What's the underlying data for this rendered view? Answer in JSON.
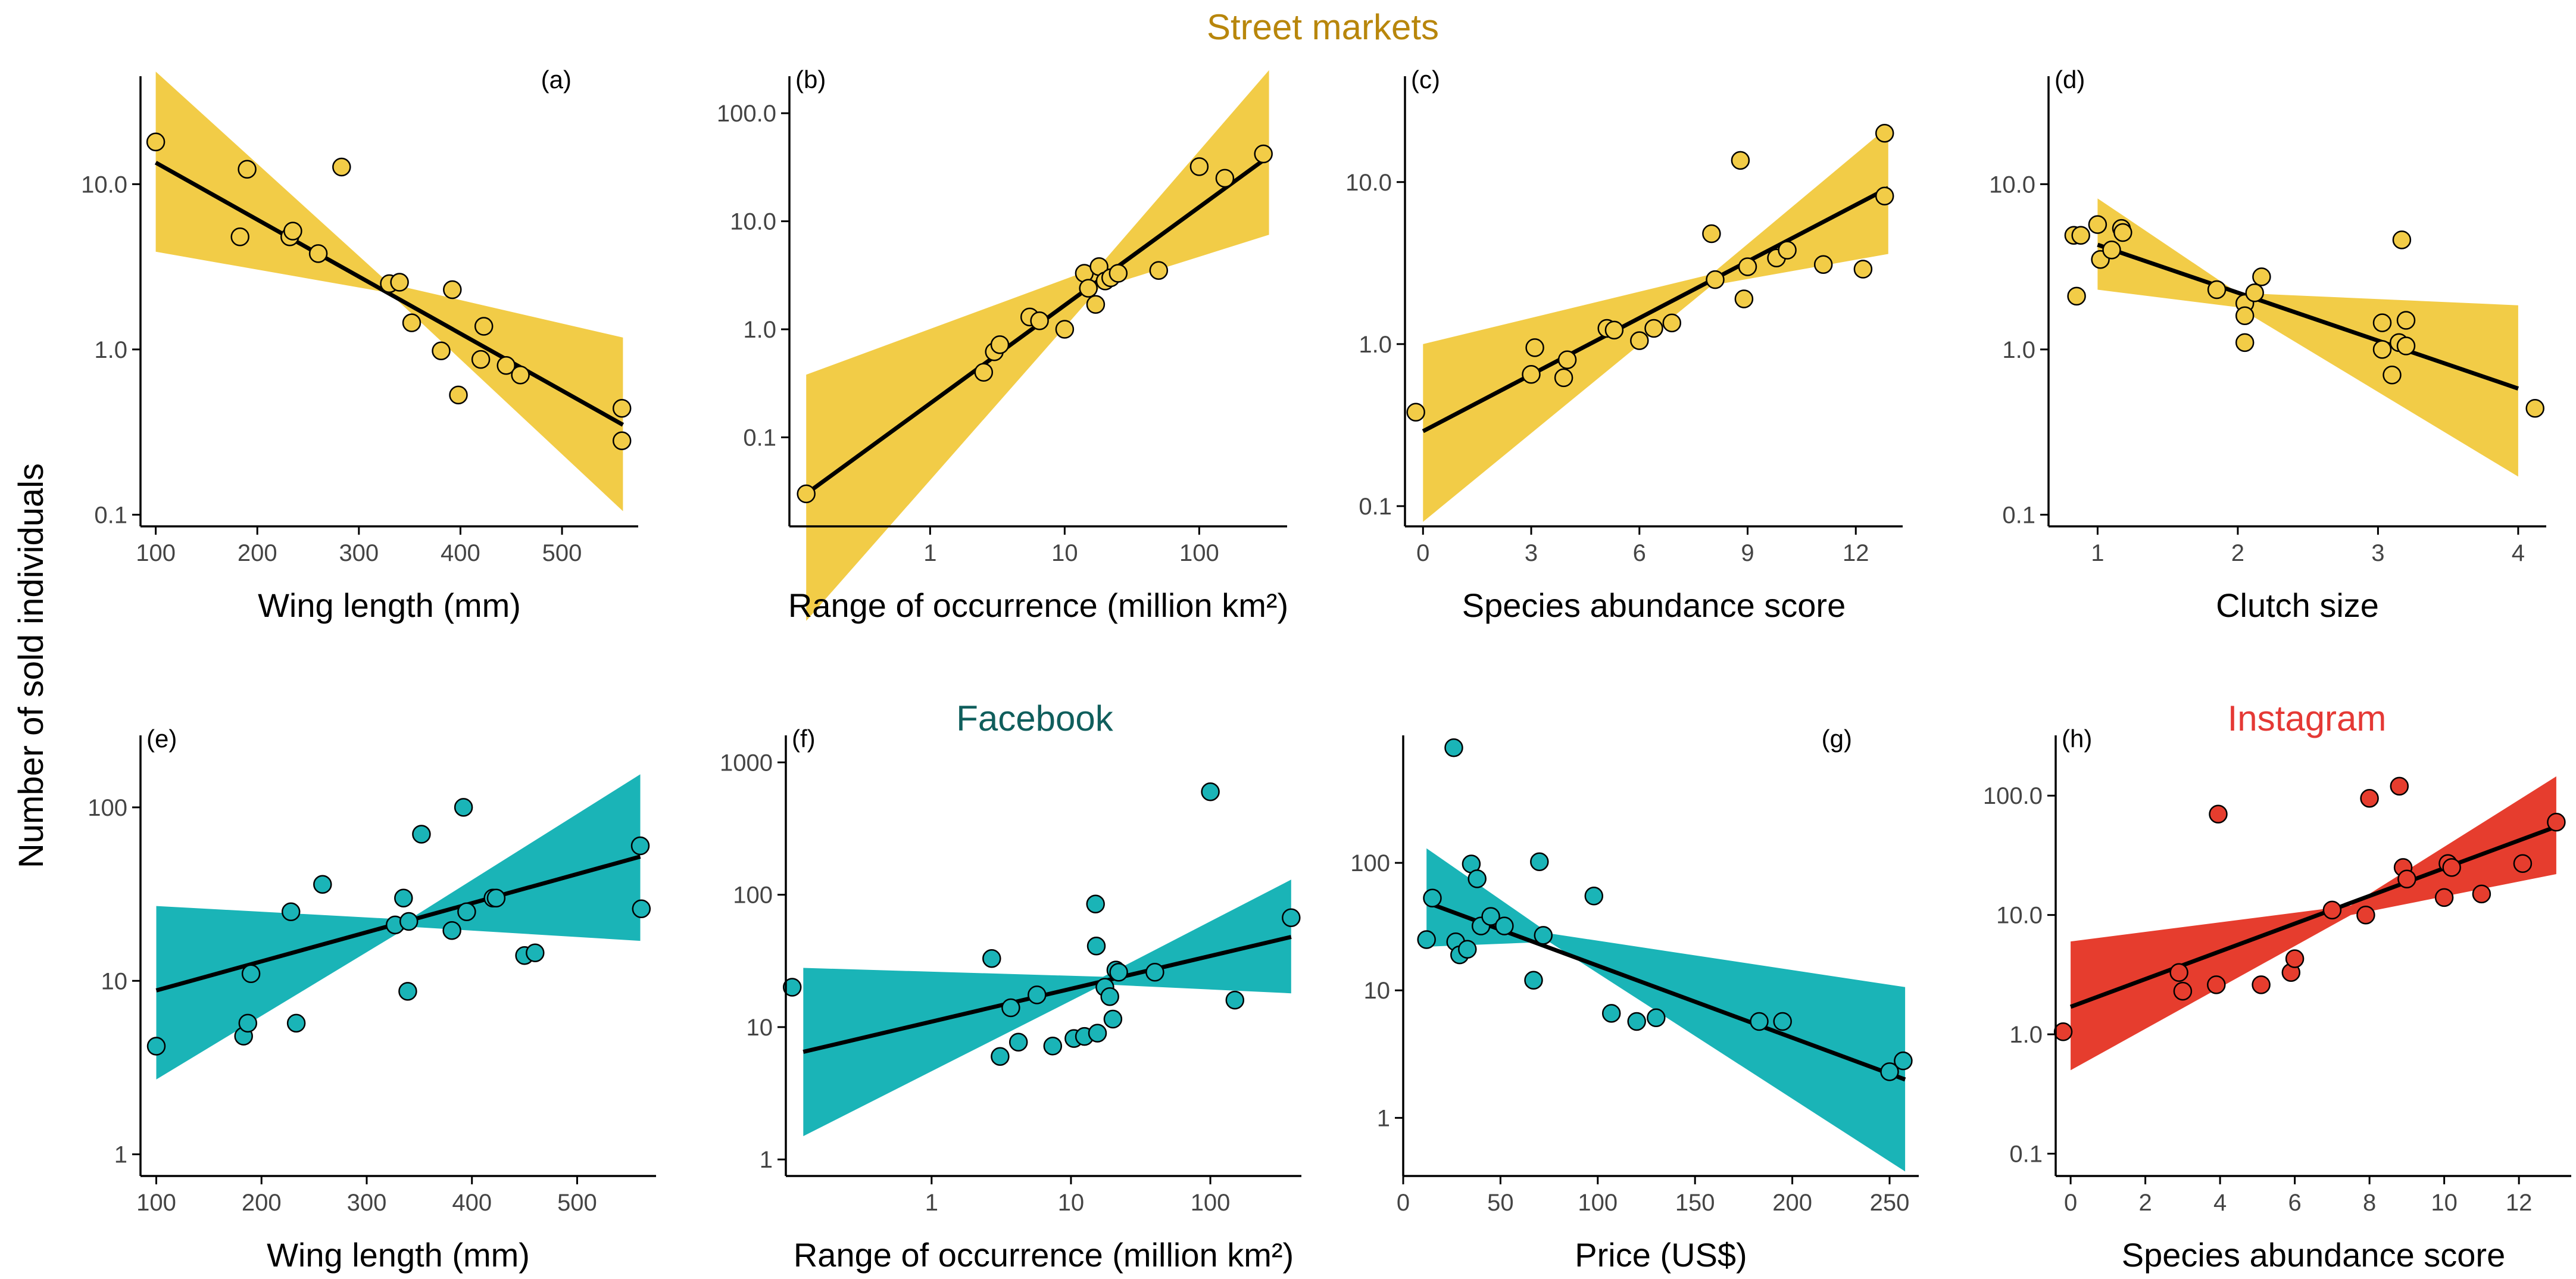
{
  "figure": {
    "y_label": "Number of sold individuals",
    "headers": [
      {
        "text": "Street markets",
        "color": "#B8860B"
      },
      {
        "text": "Facebook",
        "color": "#0F5E5C"
      },
      {
        "text": "Instagram",
        "color": "#E53935"
      }
    ]
  },
  "colors": {
    "street": "#F2CC47",
    "facebook": "#1AB4B7",
    "instagram": "#E63D2E",
    "line": "#000000"
  },
  "chart_data": [
    {
      "panel": "(a)",
      "type": "scatter",
      "label_pos": "top-right",
      "group": "street",
      "xlabel": "Wing length (mm)",
      "x_scale": "linear",
      "xlim": [
        85,
        575
      ],
      "xticks": [
        100,
        200,
        300,
        400,
        500
      ],
      "xtick_labels": [
        "100",
        "200",
        "300",
        "400",
        "500"
      ],
      "ylim": [
        0.085,
        45
      ],
      "yticks": [
        0.1,
        1,
        10
      ],
      "ytick_labels": [
        "0.1",
        "1.0",
        "10.0"
      ],
      "points": [
        [
          100,
          18
        ],
        [
          183,
          4.8
        ],
        [
          190,
          12.3
        ],
        [
          232,
          4.8
        ],
        [
          235,
          5.2
        ],
        [
          260,
          3.8
        ],
        [
          283,
          12.7
        ],
        [
          330,
          2.5
        ],
        [
          340,
          2.55
        ],
        [
          352,
          1.45
        ],
        [
          381,
          0.98
        ],
        [
          392,
          2.3
        ],
        [
          398,
          0.53
        ],
        [
          420,
          0.87
        ],
        [
          423,
          1.38
        ],
        [
          445,
          0.8
        ],
        [
          459,
          0.7
        ],
        [
          559,
          0.44
        ],
        [
          559,
          0.28
        ]
      ],
      "fit": [
        [
          100,
          13.5
        ],
        [
          560,
          0.35
        ]
      ],
      "band": {
        "x": [
          100,
          330,
          560
        ],
        "lower": [
          3.9,
          2.2,
          0.105
        ],
        "upper": [
          48,
          2.5,
          1.18
        ]
      }
    },
    {
      "panel": "(b)",
      "type": "scatter",
      "label_pos": "top-left",
      "group": "street",
      "xlabel": "Range of occurrence (million km²)",
      "x_scale": "log",
      "xlim": [
        0.09,
        450
      ],
      "xticks": [
        1,
        10,
        100
      ],
      "xtick_labels": [
        "1",
        "10",
        "100"
      ],
      "ylim": [
        0.015,
        220
      ],
      "yticks": [
        0.1,
        1,
        10,
        100
      ],
      "ytick_labels": [
        "0.1",
        "1.0",
        "10.0",
        "100.0"
      ],
      "points": [
        [
          0.12,
          0.03
        ],
        [
          2.5,
          0.4
        ],
        [
          3,
          0.62
        ],
        [
          3.3,
          0.72
        ],
        [
          5.5,
          1.3
        ],
        [
          6.5,
          1.2
        ],
        [
          10,
          1.0
        ],
        [
          14,
          3.3
        ],
        [
          15,
          2.4
        ],
        [
          17,
          1.7
        ],
        [
          18,
          3.8
        ],
        [
          20,
          2.8
        ],
        [
          22,
          3.0
        ],
        [
          25,
          3.3
        ],
        [
          50,
          3.5
        ],
        [
          100,
          32
        ],
        [
          155,
          25
        ],
        [
          300,
          42
        ]
      ],
      "fit": [
        [
          0.12,
          0.03
        ],
        [
          330,
          40
        ]
      ],
      "band": {
        "x": [
          0.12,
          18,
          330
        ],
        "lower": [
          0.002,
          2.4,
          7.5
        ],
        "upper": [
          0.38,
          3.8,
          250
        ]
      }
    },
    {
      "panel": "(c)",
      "type": "scatter",
      "label_pos": "top-left",
      "group": "street",
      "xlabel": "Species abundance score",
      "x_scale": "linear",
      "xlim": [
        -0.5,
        13.3
      ],
      "xticks": [
        0,
        3,
        6,
        9,
        12
      ],
      "xtick_labels": [
        "0",
        "3",
        "6",
        "9",
        "12"
      ],
      "ylim": [
        0.075,
        45
      ],
      "yticks": [
        0.1,
        1,
        10
      ],
      "ytick_labels": [
        "0.1",
        "1.0",
        "10.0"
      ],
      "points": [
        [
          -0.2,
          0.38
        ],
        [
          3,
          0.65
        ],
        [
          3.1,
          0.95
        ],
        [
          3.9,
          0.62
        ],
        [
          4,
          0.8
        ],
        [
          5.1,
          1.25
        ],
        [
          5.3,
          1.22
        ],
        [
          6,
          1.05
        ],
        [
          6.4,
          1.25
        ],
        [
          6.9,
          1.35
        ],
        [
          8,
          4.8
        ],
        [
          8.1,
          2.5
        ],
        [
          8.8,
          13.6
        ],
        [
          8.9,
          1.9
        ],
        [
          9,
          3
        ],
        [
          9.8,
          3.4
        ],
        [
          10.1,
          3.8
        ],
        [
          11.1,
          3.1
        ],
        [
          12.2,
          2.9
        ],
        [
          12.8,
          20
        ],
        [
          12.8,
          8.2
        ]
      ],
      "fit": [
        [
          0,
          0.29
        ],
        [
          12.9,
          9.2
        ]
      ],
      "band": {
        "x": [
          0,
          8,
          12.9
        ],
        "lower": [
          0.08,
          2.3,
          3.6
        ],
        "upper": [
          1.0,
          2.7,
          22
        ]
      }
    },
    {
      "panel": "(d)",
      "type": "scatter",
      "label_pos": "top-left",
      "group": "street",
      "xlabel": "Clutch size",
      "x_scale": "linear",
      "xlim": [
        0.65,
        4.2
      ],
      "xticks": [
        1,
        2,
        3,
        4
      ],
      "xtick_labels": [
        "1",
        "2",
        "3",
        "4"
      ],
      "ylim": [
        0.085,
        45
      ],
      "yticks": [
        0.1,
        1,
        10
      ],
      "ytick_labels": [
        "0.1",
        "1.0",
        "10.0"
      ],
      "points": [
        [
          0.83,
          4.9
        ],
        [
          0.85,
          2.1
        ],
        [
          0.88,
          4.9
        ],
        [
          1,
          5.7
        ],
        [
          1.02,
          3.5
        ],
        [
          1.1,
          4
        ],
        [
          1.17,
          5.4
        ],
        [
          1.18,
          5.1
        ],
        [
          1.85,
          2.3
        ],
        [
          2.05,
          1.9
        ],
        [
          2.05,
          1.6
        ],
        [
          2.05,
          1.1
        ],
        [
          2.12,
          2.2
        ],
        [
          2.17,
          2.75
        ],
        [
          3.03,
          1.45
        ],
        [
          3.03,
          1.0
        ],
        [
          3.1,
          0.7
        ],
        [
          3.15,
          1.1
        ],
        [
          3.2,
          1.05
        ],
        [
          3.2,
          1.5
        ],
        [
          3.17,
          4.6
        ],
        [
          4.12,
          0.44
        ]
      ],
      "fit": [
        [
          1,
          4.3
        ],
        [
          4,
          0.58
        ]
      ],
      "band": {
        "x": [
          1,
          2,
          4
        ],
        "lower": [
          2.3,
          1.8,
          0.17
        ],
        "upper": [
          8.2,
          2.2,
          1.85
        ]
      }
    },
    {
      "panel": "(e)",
      "type": "scatter",
      "label_pos": "top-left",
      "group": "facebook",
      "xlabel": "Wing length (mm)",
      "x_scale": "linear",
      "xlim": [
        85,
        575
      ],
      "xticks": [
        100,
        200,
        300,
        400,
        500
      ],
      "xtick_labels": [
        "100",
        "200",
        "300",
        "400",
        "500"
      ],
      "ylim": [
        0.75,
        260
      ],
      "yticks": [
        1,
        10,
        100
      ],
      "ytick_labels": [
        "1",
        "10",
        "100"
      ],
      "points": [
        [
          100,
          4.2
        ],
        [
          183,
          4.8
        ],
        [
          187,
          5.7
        ],
        [
          190,
          11
        ],
        [
          228,
          25
        ],
        [
          233,
          5.7
        ],
        [
          258,
          36
        ],
        [
          327,
          21
        ],
        [
          335,
          30
        ],
        [
          339,
          8.7
        ],
        [
          340,
          22
        ],
        [
          352,
          70
        ],
        [
          381,
          19.5
        ],
        [
          392,
          100
        ],
        [
          395,
          25
        ],
        [
          420,
          30
        ],
        [
          423,
          30
        ],
        [
          450,
          14
        ],
        [
          460,
          14.5
        ],
        [
          560,
          60
        ],
        [
          561,
          26
        ]
      ],
      "fit": [
        [
          100,
          8.8
        ],
        [
          560,
          52
        ]
      ],
      "band": {
        "x": [
          100,
          340,
          560
        ],
        "lower": [
          2.7,
          20.5,
          17
        ],
        "upper": [
          27,
          22.5,
          155
        ]
      }
    },
    {
      "panel": "(f)",
      "type": "scatter",
      "label_pos": "top-left",
      "group": "facebook",
      "xlabel": "Range of occurrence (million km²)",
      "x_scale": "log",
      "xlim": [
        0.09,
        450
      ],
      "xticks": [
        1,
        10,
        100
      ],
      "xtick_labels": [
        "1",
        "10",
        "100"
      ],
      "ylim": [
        0.75,
        1600
      ],
      "yticks": [
        1,
        10,
        100,
        1000
      ],
      "ytick_labels": [
        "1",
        "10",
        "100",
        "1000"
      ],
      "points": [
        [
          0.1,
          20
        ],
        [
          2.7,
          33
        ],
        [
          3.1,
          6
        ],
        [
          3.7,
          14
        ],
        [
          4.2,
          7.7
        ],
        [
          5.7,
          17.5
        ],
        [
          7.4,
          7.2
        ],
        [
          10.5,
          8.2
        ],
        [
          12.5,
          8.5
        ],
        [
          15,
          85
        ],
        [
          15.2,
          41
        ],
        [
          15.5,
          9
        ],
        [
          17.5,
          20
        ],
        [
          19,
          17
        ],
        [
          20,
          11.5
        ],
        [
          21,
          27
        ],
        [
          22,
          26
        ],
        [
          40,
          26
        ],
        [
          100,
          600
        ],
        [
          150,
          16
        ],
        [
          380,
          67
        ]
      ],
      "fit": [
        [
          0.12,
          6.5
        ],
        [
          380,
          48
        ]
      ],
      "band": {
        "x": [
          0.12,
          17,
          380
        ],
        "lower": [
          1.5,
          21,
          18
        ],
        "upper": [
          28,
          24,
          130
        ]
      }
    },
    {
      "panel": "(g)",
      "type": "scatter",
      "label_pos": "top-right",
      "group": "facebook",
      "xlabel": "Price (US$)",
      "x_scale": "linear",
      "xlim": [
        0,
        265
      ],
      "xticks": [
        0,
        50,
        100,
        150,
        200,
        250
      ],
      "xtick_labels": [
        "0",
        "50",
        "100",
        "150",
        "200",
        "250"
      ],
      "ylim": [
        0.35,
        1000
      ],
      "yticks": [
        1,
        10,
        100
      ],
      "ytick_labels": [
        "1",
        "10",
        "100"
      ],
      "points": [
        [
          12,
          25
        ],
        [
          15,
          53
        ],
        [
          26,
          800
        ],
        [
          27,
          24
        ],
        [
          29,
          19
        ],
        [
          33,
          21
        ],
        [
          35,
          98
        ],
        [
          38,
          75
        ],
        [
          40,
          32
        ],
        [
          45,
          38
        ],
        [
          52,
          32
        ],
        [
          67,
          12
        ],
        [
          70,
          102
        ],
        [
          72,
          27
        ],
        [
          98,
          55
        ],
        [
          107,
          6.6
        ],
        [
          120,
          5.7
        ],
        [
          130,
          6.1
        ],
        [
          183,
          5.7
        ],
        [
          195,
          5.7
        ],
        [
          250,
          2.3
        ],
        [
          257,
          2.8
        ]
      ],
      "fit": [
        [
          12,
          49
        ],
        [
          258,
          2.0
        ]
      ],
      "band": {
        "x": [
          12,
          75,
          258
        ],
        "lower": [
          22,
          24,
          0.38
        ],
        "upper": [
          130,
          28,
          10.6
        ]
      }
    },
    {
      "panel": "(h)",
      "type": "scatter",
      "label_pos": "top-left",
      "group": "instagram",
      "xlabel": "Species abundance score",
      "x_scale": "linear",
      "xlim": [
        -0.4,
        13.4
      ],
      "xticks": [
        0,
        2,
        4,
        6,
        8,
        10,
        12
      ],
      "xtick_labels": [
        "0",
        "2",
        "4",
        "6",
        "8",
        "10",
        "12"
      ],
      "ylim": [
        0.065,
        320
      ],
      "yticks": [
        0.1,
        1,
        10,
        100
      ],
      "ytick_labels": [
        "0.1",
        "1.0",
        "10.0",
        "100.0"
      ],
      "points": [
        [
          -0.2,
          1.05
        ],
        [
          2.9,
          3.3
        ],
        [
          3,
          2.3
        ],
        [
          3.9,
          2.6
        ],
        [
          3.95,
          70
        ],
        [
          5.1,
          2.6
        ],
        [
          5.9,
          3.3
        ],
        [
          6,
          4.3
        ],
        [
          7,
          11
        ],
        [
          7.9,
          10
        ],
        [
          8,
          95
        ],
        [
          8.8,
          120
        ],
        [
          8.9,
          25
        ],
        [
          9,
          20
        ],
        [
          10,
          14
        ],
        [
          10.1,
          27
        ],
        [
          10.2,
          25
        ],
        [
          11,
          15
        ],
        [
          12.1,
          27
        ],
        [
          13,
          60
        ]
      ],
      "fit": [
        [
          0,
          1.7
        ],
        [
          13,
          55
        ]
      ],
      "band": {
        "x": [
          0,
          7.5,
          13
        ],
        "lower": [
          0.5,
          10,
          22
        ],
        "upper": [
          6,
          12,
          145
        ]
      }
    }
  ]
}
